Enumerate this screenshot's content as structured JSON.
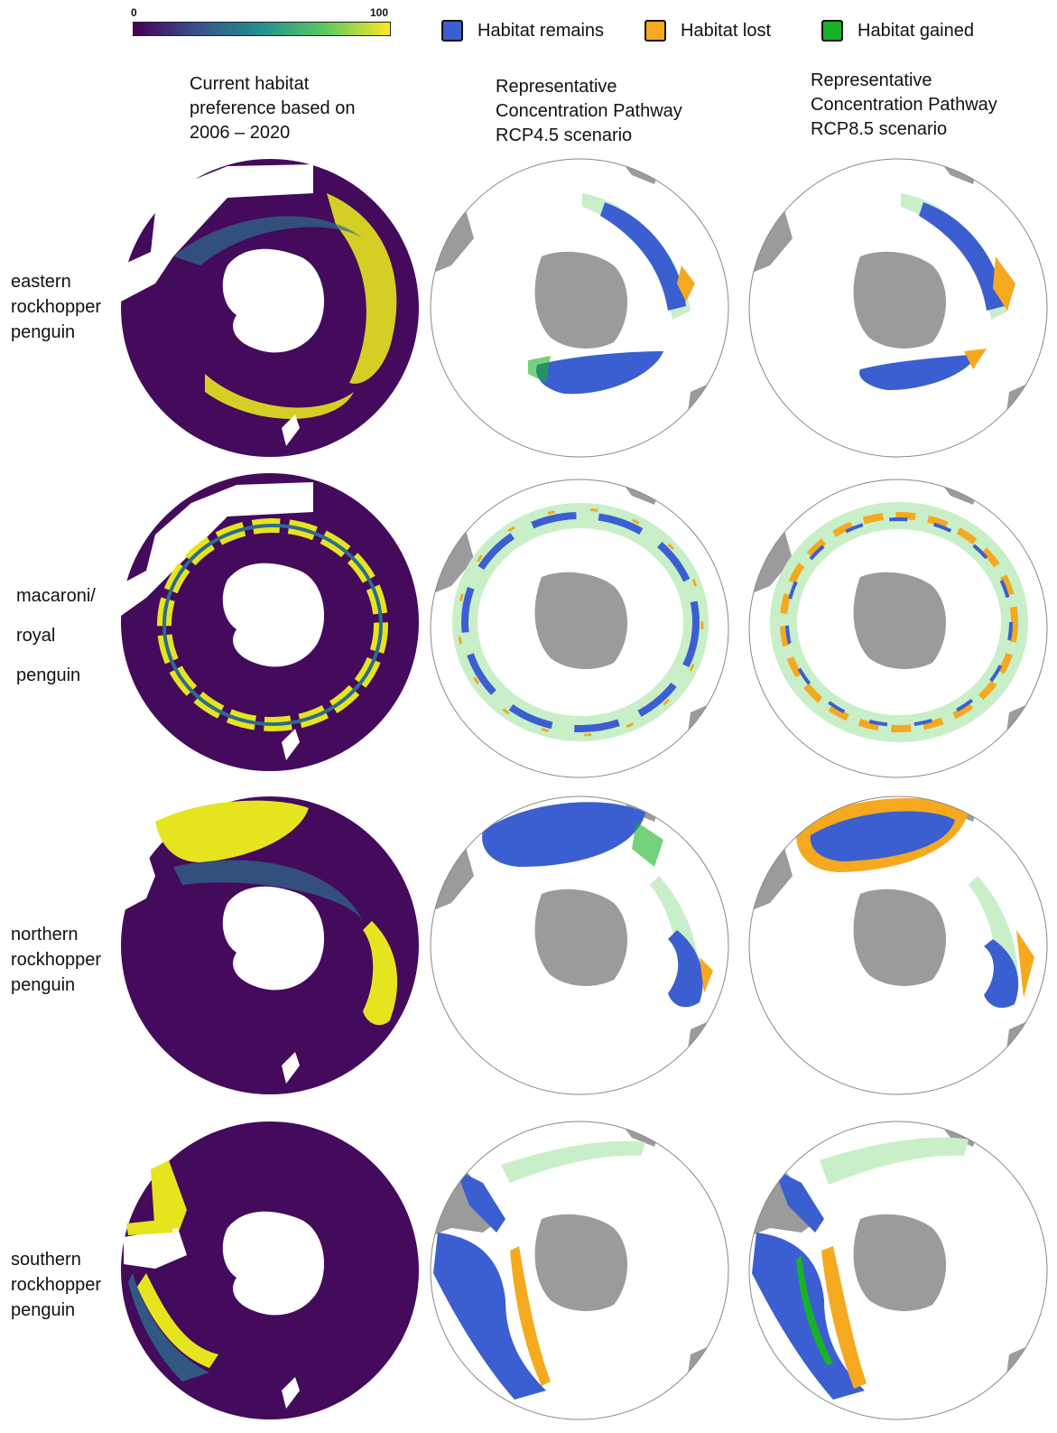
{
  "colorbar": {
    "min_label": "0",
    "max_label": "100",
    "colors": [
      "#440154",
      "#3b528b",
      "#21918c",
      "#5ec962",
      "#fde725"
    ]
  },
  "legend": [
    {
      "label": "Habitat remains",
      "color": "#3b5fd0"
    },
    {
      "label": "Habitat lost",
      "color": "#f4a91f"
    },
    {
      "label": "Habitat gained",
      "color": "#17b324"
    }
  ],
  "columns": [
    "Current habitat\npreference based on\n2006 – 2020",
    "Representative\nConcentration Pathway\nRCP4.5 scenario",
    "Representative\nConcentration Pathway\nRCP8.5 scenario"
  ],
  "rows": [
    {
      "label": "eastern\nrockhopper\npenguin"
    },
    {
      "label": "macaroni/\nroyal\npenguin"
    },
    {
      "label": "northern\nrockhopper\npenguin"
    },
    {
      "label": "southern\nrockhopper\npenguin"
    }
  ],
  "palette": {
    "habitat_bg": "#440a5c",
    "habitat_mid": "#2c6c8c",
    "habitat_high": "#e6e41f",
    "land": "#9b9b9b",
    "gain_light": "#c8efc8"
  }
}
